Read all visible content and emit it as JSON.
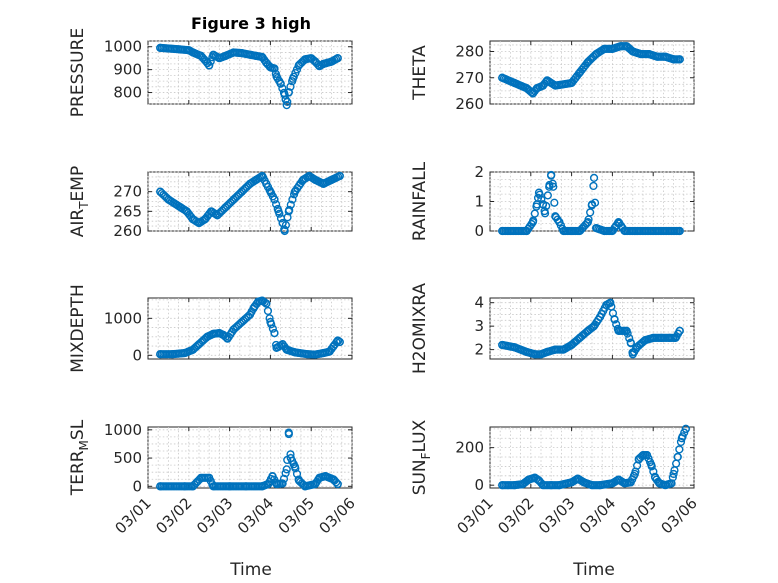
{
  "figure": {
    "title": "Figure 3 high"
  },
  "x_axis": {
    "label": "Time",
    "tick_labels": [
      "03/01",
      "03/02",
      "03/03",
      "03/04",
      "03/05",
      "03/06"
    ],
    "range_days": [
      0,
      5
    ]
  },
  "chart_data": [
    {
      "type": "scatter",
      "ylabel": "PRESSURE",
      "ylim": [
        750,
        1025
      ],
      "yticks": [
        800,
        900,
        1000
      ],
      "key_points": [
        [
          0.3,
          995
        ],
        [
          0.8,
          988
        ],
        [
          1.0,
          985
        ],
        [
          1.1,
          975
        ],
        [
          1.3,
          960
        ],
        [
          1.45,
          930
        ],
        [
          1.5,
          918
        ],
        [
          1.6,
          965
        ],
        [
          1.75,
          950
        ],
        [
          1.9,
          960
        ],
        [
          2.1,
          975
        ],
        [
          2.3,
          972
        ],
        [
          2.5,
          965
        ],
        [
          2.65,
          960
        ],
        [
          2.8,
          955
        ],
        [
          2.9,
          930
        ],
        [
          3.0,
          910
        ],
        [
          3.1,
          905
        ],
        [
          3.15,
          870
        ],
        [
          3.25,
          840
        ],
        [
          3.35,
          790
        ],
        [
          3.4,
          745
        ],
        [
          3.45,
          800
        ],
        [
          3.55,
          860
        ],
        [
          3.7,
          920
        ],
        [
          3.85,
          945
        ],
        [
          4.0,
          950
        ],
        [
          4.1,
          935
        ],
        [
          4.2,
          915
        ],
        [
          4.3,
          925
        ],
        [
          4.5,
          935
        ],
        [
          4.65,
          950
        ]
      ]
    },
    {
      "type": "scatter",
      "ylabel": "THETA",
      "ylim": [
        260,
        284
      ],
      "yticks": [
        260,
        270,
        280
      ],
      "key_points": [
        [
          0.3,
          270
        ],
        [
          0.6,
          268
        ],
        [
          0.9,
          266
        ],
        [
          1.05,
          264
        ],
        [
          1.15,
          266
        ],
        [
          1.3,
          267
        ],
        [
          1.4,
          269
        ],
        [
          1.6,
          267
        ],
        [
          2.0,
          268
        ],
        [
          2.2,
          272
        ],
        [
          2.4,
          276
        ],
        [
          2.6,
          279
        ],
        [
          2.8,
          281
        ],
        [
          3.0,
          281
        ],
        [
          3.2,
          282
        ],
        [
          3.35,
          282
        ],
        [
          3.5,
          280
        ],
        [
          3.7,
          279
        ],
        [
          3.9,
          279
        ],
        [
          4.1,
          278
        ],
        [
          4.3,
          278
        ],
        [
          4.5,
          277
        ],
        [
          4.65,
          277
        ]
      ]
    },
    {
      "type": "scatter",
      "ylabel": "AIR_TEMP",
      "ylim": [
        260,
        275
      ],
      "yticks": [
        260,
        265,
        270
      ],
      "key_points": [
        [
          0.3,
          270
        ],
        [
          0.5,
          268
        ],
        [
          0.8,
          266
        ],
        [
          0.95,
          265
        ],
        [
          1.1,
          263
        ],
        [
          1.25,
          262
        ],
        [
          1.4,
          263
        ],
        [
          1.55,
          265
        ],
        [
          1.7,
          264
        ],
        [
          1.9,
          266
        ],
        [
          2.1,
          268
        ],
        [
          2.3,
          270
        ],
        [
          2.5,
          272
        ],
        [
          2.65,
          273
        ],
        [
          2.8,
          274
        ],
        [
          2.9,
          272
        ],
        [
          3.0,
          270
        ],
        [
          3.1,
          268
        ],
        [
          3.2,
          265
        ],
        [
          3.3,
          262
        ],
        [
          3.35,
          260
        ],
        [
          3.45,
          265
        ],
        [
          3.6,
          270
        ],
        [
          3.8,
          273
        ],
        [
          3.95,
          274
        ],
        [
          4.1,
          273
        ],
        [
          4.3,
          272
        ],
        [
          4.5,
          273
        ],
        [
          4.7,
          274
        ]
      ]
    },
    {
      "type": "scatter",
      "ylabel": "RAINFALL",
      "ylim": [
        0,
        2
      ],
      "yticks": [
        0,
        1,
        2
      ],
      "key_points": [
        [
          0.3,
          0
        ],
        [
          0.9,
          0
        ],
        [
          1.05,
          0.3
        ],
        [
          1.15,
          0.9
        ],
        [
          1.2,
          1.3
        ],
        [
          1.3,
          0.9
        ],
        [
          1.35,
          0.6
        ],
        [
          1.45,
          1.5
        ],
        [
          1.5,
          1.9
        ],
        [
          1.55,
          1.5
        ],
        [
          1.6,
          0.5
        ],
        [
          1.7,
          0.3
        ],
        [
          1.8,
          0
        ],
        [
          2.0,
          0
        ],
        [
          2.2,
          0
        ],
        [
          2.4,
          0.3
        ],
        [
          2.5,
          0.9
        ],
        [
          2.55,
          1.8
        ],
        [
          2.6,
          0.1
        ],
        [
          2.8,
          0
        ],
        [
          3.0,
          0
        ],
        [
          3.15,
          0.3
        ],
        [
          3.3,
          0
        ],
        [
          4.65,
          0
        ]
      ]
    },
    {
      "type": "scatter",
      "ylabel": "MIXDEPTH",
      "ylim": [
        -100,
        1550
      ],
      "yticks": [
        0,
        1000
      ],
      "key_points": [
        [
          0.3,
          30
        ],
        [
          0.6,
          30
        ],
        [
          0.9,
          60
        ],
        [
          1.1,
          150
        ],
        [
          1.25,
          300
        ],
        [
          1.45,
          500
        ],
        [
          1.6,
          580
        ],
        [
          1.75,
          600
        ],
        [
          1.85,
          550
        ],
        [
          1.95,
          450
        ],
        [
          2.1,
          700
        ],
        [
          2.3,
          900
        ],
        [
          2.5,
          1100
        ],
        [
          2.6,
          1300
        ],
        [
          2.7,
          1450
        ],
        [
          2.8,
          1480
        ],
        [
          2.9,
          1400
        ],
        [
          3.0,
          900
        ],
        [
          3.1,
          600
        ],
        [
          3.15,
          200
        ],
        [
          3.3,
          300
        ],
        [
          3.4,
          150
        ],
        [
          3.6,
          80
        ],
        [
          3.9,
          30
        ],
        [
          4.1,
          20
        ],
        [
          4.3,
          60
        ],
        [
          4.45,
          100
        ],
        [
          4.55,
          250
        ],
        [
          4.65,
          400
        ],
        [
          4.7,
          360
        ]
      ]
    },
    {
      "type": "scatter",
      "ylabel": "H2OMIXRA",
      "ylim": [
        1.6,
        4.2
      ],
      "yticks": [
        2,
        3,
        4
      ],
      "key_points": [
        [
          0.3,
          2.2
        ],
        [
          0.6,
          2.1
        ],
        [
          0.9,
          1.9
        ],
        [
          1.1,
          1.8
        ],
        [
          1.25,
          1.8
        ],
        [
          1.4,
          1.9
        ],
        [
          1.6,
          2.0
        ],
        [
          1.8,
          2.0
        ],
        [
          2.0,
          2.2
        ],
        [
          2.2,
          2.5
        ],
        [
          2.4,
          2.8
        ],
        [
          2.55,
          3.0
        ],
        [
          2.7,
          3.4
        ],
        [
          2.85,
          3.9
        ],
        [
          2.95,
          4.0
        ],
        [
          3.05,
          3.3
        ],
        [
          3.15,
          2.8
        ],
        [
          3.35,
          2.8
        ],
        [
          3.45,
          2.3
        ],
        [
          3.5,
          1.8
        ],
        [
          3.6,
          2.1
        ],
        [
          3.8,
          2.4
        ],
        [
          4.0,
          2.5
        ],
        [
          4.2,
          2.5
        ],
        [
          4.4,
          2.5
        ],
        [
          4.55,
          2.5
        ],
        [
          4.65,
          2.8
        ]
      ]
    },
    {
      "type": "scatter",
      "ylabel": "TERR_MSL",
      "ylim": [
        -30,
        1050
      ],
      "yticks": [
        0,
        500,
        1000
      ],
      "key_points": [
        [
          0.3,
          0
        ],
        [
          0.9,
          0
        ],
        [
          1.1,
          0
        ],
        [
          1.3,
          150
        ],
        [
          1.5,
          150
        ],
        [
          1.6,
          0
        ],
        [
          2.0,
          0
        ],
        [
          2.4,
          0
        ],
        [
          2.8,
          0
        ],
        [
          2.95,
          40
        ],
        [
          3.05,
          180
        ],
        [
          3.15,
          40
        ],
        [
          3.3,
          50
        ],
        [
          3.4,
          300
        ],
        [
          3.45,
          950
        ],
        [
          3.5,
          500
        ],
        [
          3.6,
          350
        ],
        [
          3.7,
          100
        ],
        [
          3.85,
          0
        ],
        [
          4.1,
          40
        ],
        [
          4.2,
          150
        ],
        [
          4.35,
          180
        ],
        [
          4.55,
          120
        ],
        [
          4.65,
          40
        ]
      ]
    },
    {
      "type": "scatter",
      "ylabel": "SUN_FLUX",
      "ylim": [
        -15,
        310
      ],
      "yticks": [
        0,
        200
      ],
      "key_points": [
        [
          0.3,
          0
        ],
        [
          0.6,
          0
        ],
        [
          0.8,
          5
        ],
        [
          0.95,
          30
        ],
        [
          1.1,
          40
        ],
        [
          1.2,
          25
        ],
        [
          1.3,
          0
        ],
        [
          1.5,
          0
        ],
        [
          1.7,
          0
        ],
        [
          2.0,
          15
        ],
        [
          2.15,
          35
        ],
        [
          2.3,
          15
        ],
        [
          2.5,
          0
        ],
        [
          2.7,
          0
        ],
        [
          3.0,
          10
        ],
        [
          3.15,
          30
        ],
        [
          3.3,
          10
        ],
        [
          3.45,
          15
        ],
        [
          3.55,
          60
        ],
        [
          3.65,
          140
        ],
        [
          3.75,
          160
        ],
        [
          3.85,
          160
        ],
        [
          3.95,
          110
        ],
        [
          4.05,
          40
        ],
        [
          4.15,
          10
        ],
        [
          4.3,
          0
        ],
        [
          4.45,
          10
        ],
        [
          4.5,
          60
        ],
        [
          4.6,
          150
        ],
        [
          4.7,
          250
        ],
        [
          4.8,
          300
        ]
      ]
    }
  ]
}
